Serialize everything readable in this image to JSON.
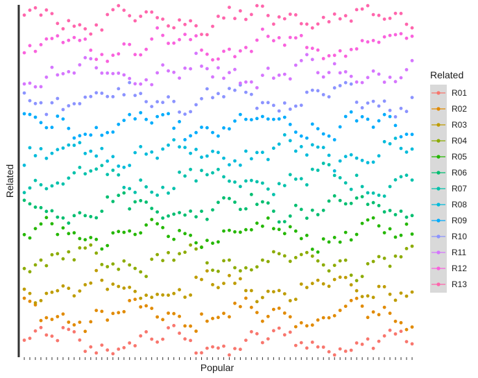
{
  "chart_data": {
    "type": "scatter",
    "xlabel": "Popular",
    "ylabel": "Related",
    "x_categories": 71,
    "y_range": [
      0,
      13
    ],
    "grid": false,
    "legend_position": "right",
    "legend": {
      "title": "Related",
      "entries": [
        "R01",
        "R02",
        "R03",
        "R04",
        "R05",
        "R06",
        "R07",
        "R08",
        "R09",
        "R10",
        "R11",
        "R12",
        "R13"
      ]
    },
    "series": [
      {
        "name": "R01",
        "color": "#F8766D"
      },
      {
        "name": "R02",
        "color": "#E18A00"
      },
      {
        "name": "R03",
        "color": "#BE9C00"
      },
      {
        "name": "R04",
        "color": "#8CAB00"
      },
      {
        "name": "R05",
        "color": "#24B700"
      },
      {
        "name": "R06",
        "color": "#00BE70"
      },
      {
        "name": "R07",
        "color": "#00C1AB"
      },
      {
        "name": "R08",
        "color": "#00BBDA"
      },
      {
        "name": "R09",
        "color": "#00ACFC"
      },
      {
        "name": "R10",
        "color": "#8B93FF"
      },
      {
        "name": "R11",
        "color": "#D575FE"
      },
      {
        "name": "R12",
        "color": "#F962DD"
      },
      {
        "name": "R13",
        "color": "#FF65AC"
      }
    ]
  }
}
